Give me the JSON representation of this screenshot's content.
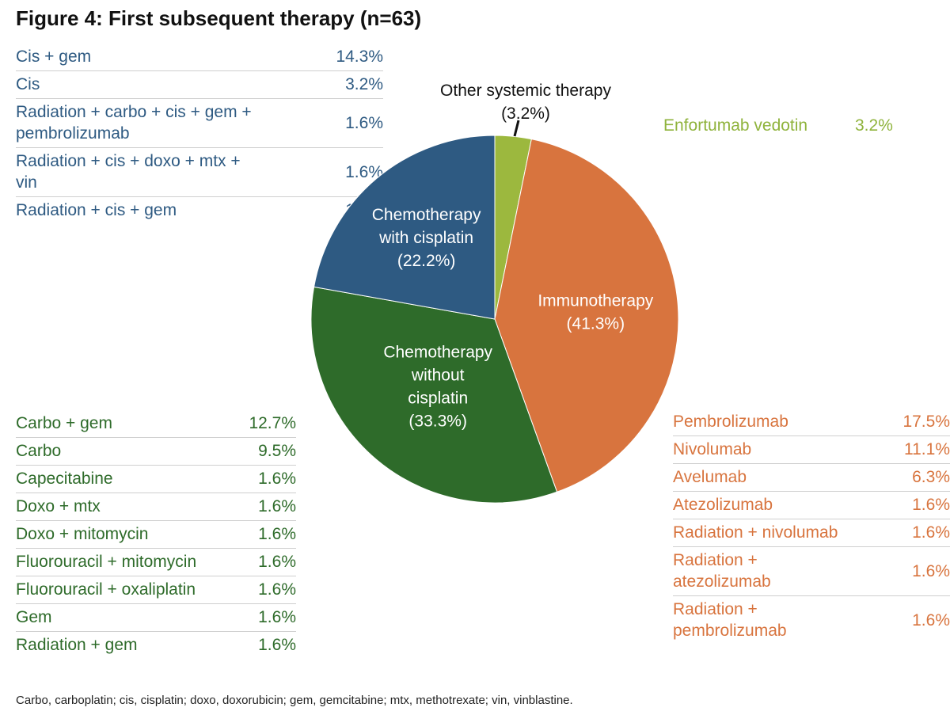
{
  "title": "Figure 4: First subsequent therapy (n=63)",
  "footnote": "Carbo, carboplatin; cis, cisplatin; doxo, doxorubicin; gem, gemcitabine; mtx, methotrexate; vin, vinblastine.",
  "colors": {
    "chemo_with_cis": "#2e5a82",
    "chemo_without_cis": "#2e6b2a",
    "immunotherapy": "#d8743e",
    "other": "#9cb83e"
  },
  "chart_data": {
    "type": "pie",
    "title": "Figure 4: First subsequent therapy (n=63)",
    "slices": [
      {
        "label": "Other systemic therapy",
        "value": 3.2,
        "display": "(3.2%)",
        "color": "#9cb83e"
      },
      {
        "label": "Immunotherapy",
        "value": 41.3,
        "display": "(41.3%)",
        "color": "#d8743e"
      },
      {
        "label": "Chemotherapy without cisplatin",
        "value": 33.3,
        "display": "(33.3%)",
        "color": "#2e6b2a"
      },
      {
        "label": "Chemotherapy with cisplatin",
        "value": 22.2,
        "display": "(22.2%)",
        "color": "#2e5a82"
      }
    ],
    "slice_label_lines": [
      [
        "Other systemic therapy"
      ],
      [
        "Immunotherapy"
      ],
      [
        "Chemotherapy",
        "without",
        "cisplatin"
      ],
      [
        "Chemotherapy",
        "with cisplatin"
      ]
    ],
    "breakdowns": {
      "chemo_with_cisplatin": [
        {
          "label": "Cis + gem",
          "value": "14.3%"
        },
        {
          "label": "Cis",
          "value": "3.2%"
        },
        {
          "label": "Radiation + carbo + cis + gem + pembrolizumab",
          "value": "1.6%"
        },
        {
          "label": "Radiation + cis + doxo + mtx + vin",
          "value": "1.6%"
        },
        {
          "label": "Radiation + cis + gem",
          "value": "1.6%"
        }
      ],
      "chemo_without_cisplatin": [
        {
          "label": "Carbo + gem",
          "value": "12.7%"
        },
        {
          "label": "Carbo",
          "value": "9.5%"
        },
        {
          "label": "Capecitabine",
          "value": "1.6%"
        },
        {
          "label": "Doxo + mtx",
          "value": "1.6%"
        },
        {
          "label": "Doxo + mitomycin",
          "value": "1.6%"
        },
        {
          "label": "Fluorouracil + mitomycin",
          "value": "1.6%"
        },
        {
          "label": "Fluorouracil + oxaliplatin",
          "value": "1.6%"
        },
        {
          "label": "Gem",
          "value": "1.6%"
        },
        {
          "label": "Radiation + gem",
          "value": "1.6%"
        }
      ],
      "immunotherapy": [
        {
          "label": "Pembrolizumab",
          "value": "17.5%"
        },
        {
          "label": "Nivolumab",
          "value": "11.1%"
        },
        {
          "label": "Avelumab",
          "value": "6.3%"
        },
        {
          "label": "Atezolizumab",
          "value": "1.6%"
        },
        {
          "label": "Radiation + nivolumab",
          "value": "1.6%"
        },
        {
          "label": "Radiation + atezolizumab",
          "value": "1.6%"
        },
        {
          "label": "Radiation + pembrolizumab",
          "value": "1.6%"
        }
      ],
      "other_systemic": [
        {
          "label": "Enfortumab vedotin",
          "value": "3.2%"
        }
      ]
    }
  }
}
